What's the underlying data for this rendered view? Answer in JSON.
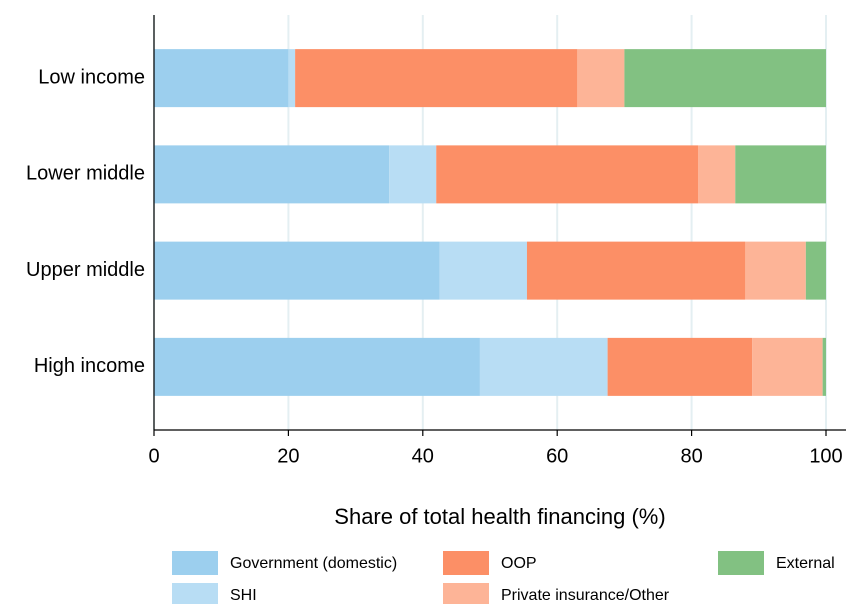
{
  "chart_data": {
    "type": "stacked-barh",
    "categories": [
      "Low income",
      "Lower middle",
      "Upper middle",
      "High income"
    ],
    "series": [
      {
        "name": "Government (domestic)",
        "color": "#9ccfee",
        "values": [
          20,
          35,
          42.5,
          48.5
        ]
      },
      {
        "name": "SHI",
        "color": "#b8ddf4",
        "values": [
          1,
          7,
          13,
          19
        ]
      },
      {
        "name": "OOP",
        "color": "#fc8f66",
        "values": [
          42,
          39,
          32.5,
          21.5
        ]
      },
      {
        "name": "Private insurance/Other",
        "color": "#fdb497",
        "values": [
          7,
          5.5,
          9,
          10.5
        ]
      },
      {
        "name": "External",
        "color": "#82c182",
        "values": [
          30,
          13.5,
          3,
          0.5
        ]
      }
    ],
    "x_label": "Share of total health financing (%)",
    "xlim": [
      0,
      100
    ],
    "xticks": [
      0,
      20,
      40,
      60,
      80,
      100
    ],
    "grid": true
  }
}
